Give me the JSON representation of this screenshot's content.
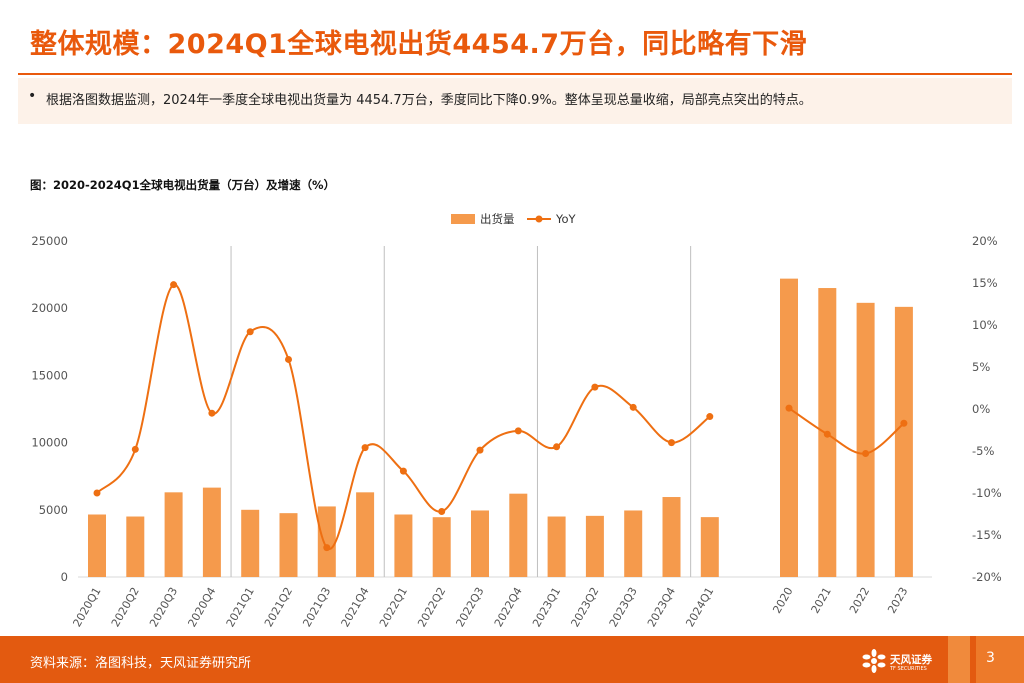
{
  "header": {
    "title": "整体规模：2024Q1全球电视出货4454.7万台，同比略有下滑",
    "bullet": "•",
    "summary": "根据洛图数据监测，2024年一季度全球电视出货量为 4454.7万台，季度同比下降0.9%。整体呈现总量收缩，局部亮点突出的特点。"
  },
  "figure": {
    "caption": "图：2020-2024Q1全球电视出货量（万台）及增速（%）"
  },
  "chart_data": {
    "type": "bar",
    "categories": [
      "2020Q1",
      "2020Q2",
      "2020Q3",
      "2020Q4",
      "2021Q1",
      "2021Q2",
      "2021Q3",
      "2021Q4",
      "2022Q1",
      "2022Q2",
      "2022Q3",
      "2022Q4",
      "2023Q1",
      "2023Q2",
      "2023Q3",
      "2023Q4",
      "2024Q1",
      "2020",
      "2021",
      "2022",
      "2023"
    ],
    "series": [
      {
        "name": "出货量",
        "type": "bar",
        "axis": "left",
        "color": "#f59a4c",
        "values": [
          4650,
          4500,
          6300,
          6650,
          5000,
          4750,
          5250,
          6300,
          4650,
          4450,
          4950,
          6200,
          4500,
          4550,
          4950,
          5950,
          4455,
          22200,
          21500,
          20400,
          20100
        ]
      },
      {
        "name": "YoY",
        "type": "line",
        "axis": "right",
        "smooth": true,
        "color": "#ee6f12",
        "values": [
          -10,
          -4.8,
          14.8,
          -0.5,
          9.2,
          5.9,
          -16.5,
          -4.6,
          -7.4,
          -12.2,
          -4.9,
          -2.6,
          -4.5,
          2.6,
          0.2,
          -4.0,
          -0.9,
          0.1,
          -3.0,
          -5.3,
          -1.7
        ]
      }
    ],
    "ylim": [
      0,
      25000
    ],
    "yticks": [
      "0",
      "5000",
      "10000",
      "15000",
      "20000",
      "25000"
    ],
    "y2lim": [
      -20,
      20
    ],
    "y2ticks": [
      "-20%",
      "-15%",
      "-10%",
      "-5%",
      "0%",
      "5%",
      "10%",
      "15%",
      "20%"
    ],
    "legend": "top-center",
    "separators_after": [
      "2020Q4",
      "2021Q4",
      "2022Q4",
      "2023Q4"
    ]
  },
  "footer": {
    "source": "资料来源：洛图科技，天风证券研究所",
    "logo_name": "天风证券",
    "logo_sub": "TF SECURITIES",
    "page": "3"
  },
  "colors": {
    "accent": "#e9590c",
    "bar": "#f59a4c",
    "line": "#ee6f12",
    "footer": "#e35a10"
  }
}
